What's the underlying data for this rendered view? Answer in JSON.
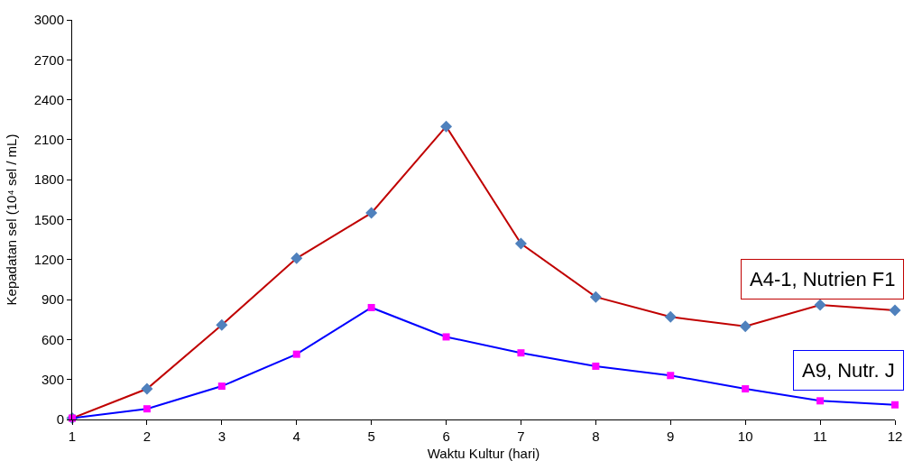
{
  "chart_data": {
    "type": "line",
    "xlabel": "Waktu Kultur (hari)",
    "ylabel": "Kepadatan sel (10⁴ sel / mL)",
    "x": [
      1,
      2,
      3,
      4,
      5,
      6,
      7,
      8,
      9,
      10,
      11,
      12
    ],
    "series": [
      {
        "name": "A4-1, Nutrien F1",
        "color": "#c00000",
        "marker": "diamond",
        "colors": [
          "#4f81bd",
          "#4f81bd",
          "#4f81bd",
          "#4f81bd",
          "#4f81bd",
          "#4f81bd",
          "#4f81bd",
          "#4f81bd",
          "#4f81bd",
          "#4f81bd",
          "#4f81bd",
          "#4f81bd"
        ],
        "values": [
          10,
          230,
          710,
          1210,
          1550,
          2200,
          1320,
          920,
          770,
          700,
          860,
          820
        ]
      },
      {
        "name": "A9, Nutr. J",
        "color": "#0000ff",
        "marker": "square",
        "colors": [
          "#ff00ff",
          "#ff00ff",
          "#ff00ff",
          "#ff00ff",
          "#ff00ff",
          "#ff00ff",
          "#ff00ff",
          "#ff00ff",
          "#ff00ff",
          "#ff00ff",
          "#ff00ff",
          "#ff00ff"
        ],
        "values": [
          10,
          80,
          250,
          490,
          840,
          620,
          500,
          400,
          330,
          230,
          140,
          110
        ]
      }
    ],
    "xlim": [
      1,
      12
    ],
    "xticks": [
      1,
      2,
      3,
      4,
      5,
      6,
      7,
      8,
      9,
      10,
      11,
      12
    ],
    "ylim": [
      0,
      3000
    ],
    "yticks": [
      0,
      300,
      600,
      900,
      1200,
      1500,
      1800,
      2100,
      2400,
      2700,
      3000
    ],
    "legend": false
  }
}
